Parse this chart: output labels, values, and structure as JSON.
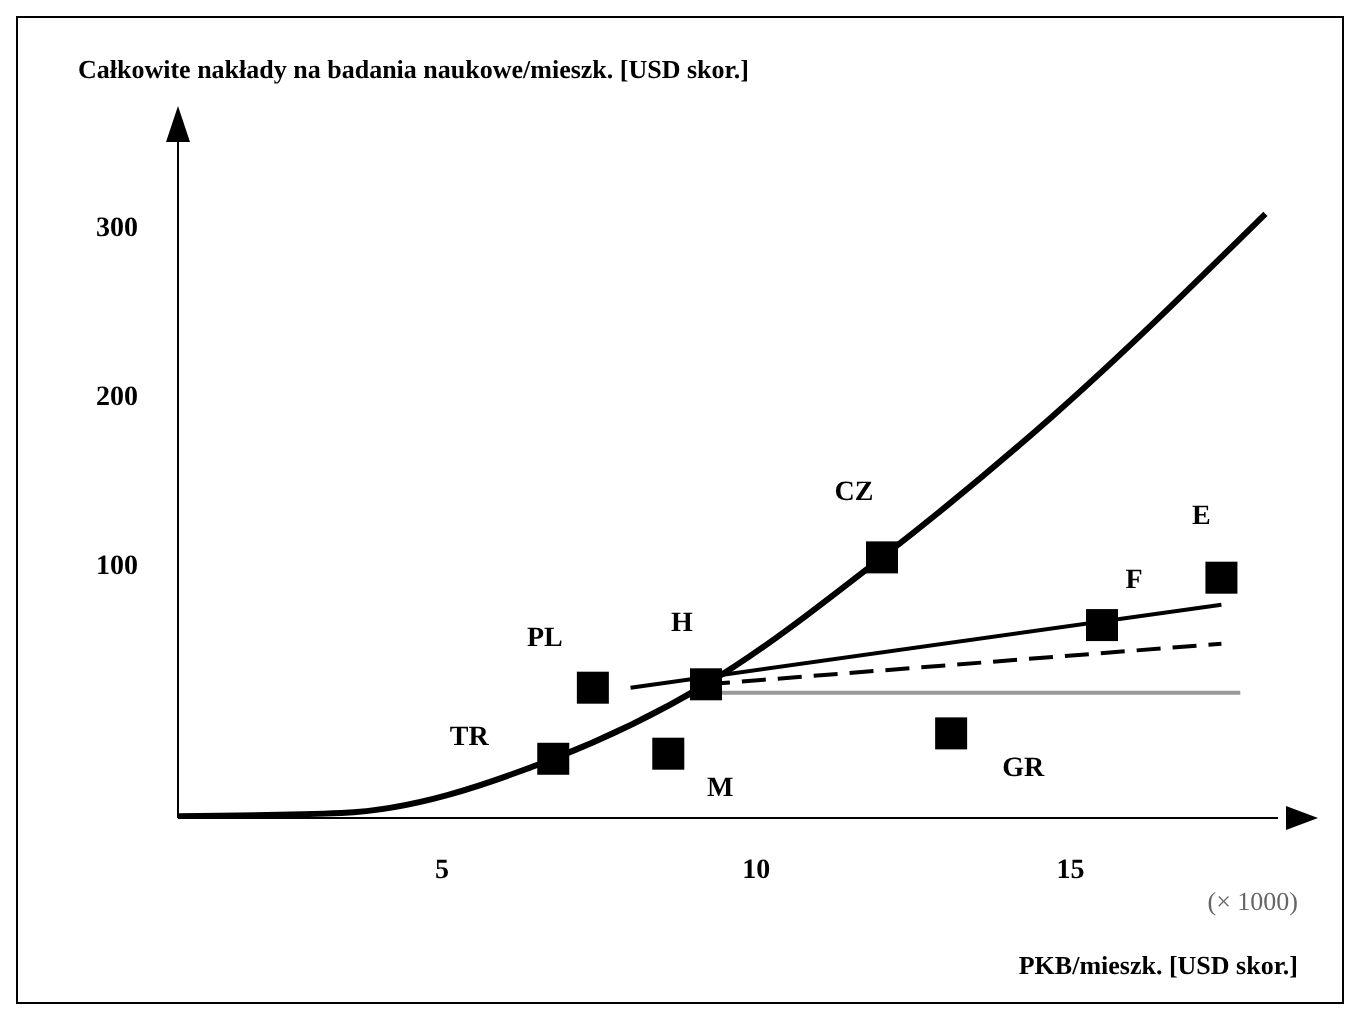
{
  "chart_data": {
    "type": "scatter",
    "ylabel": "Całkowite nakłady na badania naukowe/mieszk. [USD skor.]",
    "xlabel": "PKB/mieszk. [USD skor.]",
    "xlim": [
      0.8,
      18.3
    ],
    "ylim": [
      -50,
      340
    ],
    "xticks": [
      5,
      10,
      15
    ],
    "yticks": [
      100,
      200,
      300
    ],
    "grid": false,
    "series": [
      {
        "type": "line",
        "color": "#000000",
        "marker": "none",
        "line_style": "solid",
        "x": [
          0.8,
          3.4,
          6.77,
          9.2,
          12,
          14.7,
          18.1
        ],
        "values": [
          -49,
          -47,
          -15,
          29,
          104,
          187,
          307
        ]
      },
      {
        "type": "line",
        "color": "#000000",
        "marker": "none",
        "line_style": "solid",
        "x": [
          8.0,
          17.4
        ],
        "values": [
          27,
          76
        ]
      },
      {
        "type": "line",
        "color": "#000000",
        "marker": "none",
        "line_style": "dashed",
        "x": [
          9.2,
          17.4
        ],
        "values": [
          29,
          53
        ]
      },
      {
        "type": "line",
        "color": "#999999",
        "marker": "none",
        "line_style": "solid",
        "x": [
          9.2,
          17.7
        ],
        "values": [
          24,
          24
        ]
      },
      {
        "color": "#000000",
        "marker": "square",
        "x": [
          6.77,
          7.4,
          8.6,
          9.2,
          12.0,
          13.1,
          15.5,
          17.4
        ],
        "values": [
          -15,
          27,
          -12,
          29,
          104,
          0,
          64,
          92
        ]
      }
    ],
    "annotations": [
      {
        "text": "TR",
        "x": 6.77,
        "y": -15
      },
      {
        "text": "PL",
        "x": 7.4,
        "y": 27
      },
      {
        "text": "M",
        "x": 8.6,
        "y": -12
      },
      {
        "text": "H",
        "x": 9.2,
        "y": 29
      },
      {
        "text": "CZ",
        "x": 12.0,
        "y": 104
      },
      {
        "text": "GR",
        "x": 13.1,
        "y": 0
      },
      {
        "text": "F",
        "x": 15.5,
        "y": 64
      },
      {
        "text": "E",
        "x": 17.4,
        "y": 92
      },
      "(× 1000)"
    ]
  }
}
